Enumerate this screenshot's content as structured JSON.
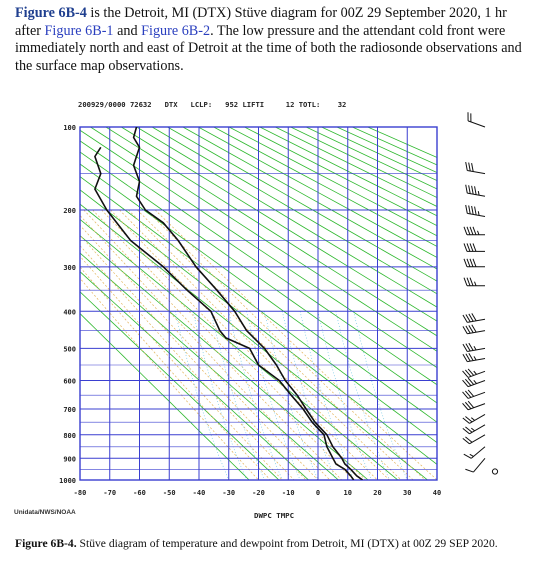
{
  "intro": {
    "fig_label": "Figure 6B-4",
    "text1": " is the Detroit, MI (DTX) Stüve diagram for 00Z 29 September 2020, 1 hr after ",
    "link1": "Figure 6B-1",
    "text2": " and ",
    "link2": "Figure 6B-2",
    "text3": ". The low pressure and the attendant cold front were immediately north and east of Detroit at the time of both the radiosonde observations and the surface map observations."
  },
  "diagram": {
    "header": {
      "datetime": "200929/0000",
      "station_id": "72632",
      "station": "DTX",
      "lclp_label": "LCLP:",
      "lclp_value": "952",
      "lift_label": "LIFTI",
      "lift_value": "12",
      "totl_label": "TOTL:",
      "totl_value": "32"
    },
    "pressure_ticks": [
      "100",
      "200",
      "300",
      "400",
      "500",
      "600",
      "700",
      "800",
      "900",
      "1000"
    ],
    "temp_ticks": [
      "-80",
      "-70",
      "-60",
      "-50",
      "-40",
      "-30",
      "-20",
      "-10",
      "0",
      "10",
      "20",
      "30",
      "40"
    ],
    "x_axis_title": "DWPC TMPC",
    "credit": "Unidata/NWS/NOAA",
    "colors": {
      "grid": "#3a3fd0",
      "dry_adiabat": "#2fb82f",
      "moist_adiabat": "#e3b45c",
      "mixing_ratio": "#5fc0e0",
      "profile": "#111111"
    },
    "temperature_profile": [
      {
        "p": 1000,
        "t": 15
      },
      {
        "p": 980,
        "t": 13
      },
      {
        "p": 950,
        "t": 11
      },
      {
        "p": 925,
        "t": 9
      },
      {
        "p": 900,
        "t": 8
      },
      {
        "p": 850,
        "t": 5
      },
      {
        "p": 800,
        "t": 3
      },
      {
        "p": 750,
        "t": -1
      },
      {
        "p": 700,
        "t": -4
      },
      {
        "p": 650,
        "t": -7
      },
      {
        "p": 600,
        "t": -11
      },
      {
        "p": 550,
        "t": -14
      },
      {
        "p": 500,
        "t": -18
      },
      {
        "p": 450,
        "t": -24
      },
      {
        "p": 400,
        "t": -28
      },
      {
        "p": 350,
        "t": -34
      },
      {
        "p": 300,
        "t": -41
      },
      {
        "p": 250,
        "t": -47
      },
      {
        "p": 220,
        "t": -52
      },
      {
        "p": 200,
        "t": -58
      },
      {
        "p": 180,
        "t": -61
      },
      {
        "p": 160,
        "t": -60
      },
      {
        "p": 140,
        "t": -62
      },
      {
        "p": 120,
        "t": -60
      },
      {
        "p": 110,
        "t": -62
      },
      {
        "p": 100,
        "t": -61
      }
    ],
    "dewpoint_profile": [
      {
        "p": 1000,
        "t": 12
      },
      {
        "p": 980,
        "t": 11
      },
      {
        "p": 950,
        "t": 9
      },
      {
        "p": 925,
        "t": 6
      },
      {
        "p": 900,
        "t": 5
      },
      {
        "p": 850,
        "t": 3
      },
      {
        "p": 800,
        "t": 2
      },
      {
        "p": 750,
        "t": -2
      },
      {
        "p": 700,
        "t": -5
      },
      {
        "p": 650,
        "t": -9
      },
      {
        "p": 600,
        "t": -13
      },
      {
        "p": 550,
        "t": -20
      },
      {
        "p": 500,
        "t": -23
      },
      {
        "p": 470,
        "t": -31
      },
      {
        "p": 450,
        "t": -33
      },
      {
        "p": 400,
        "t": -36
      },
      {
        "p": 350,
        "t": -44
      },
      {
        "p": 300,
        "t": -52
      },
      {
        "p": 250,
        "t": -63
      },
      {
        "p": 200,
        "t": -71
      },
      {
        "p": 170,
        "t": -75
      },
      {
        "p": 150,
        "t": -73
      },
      {
        "p": 130,
        "t": -75
      },
      {
        "p": 120,
        "t": -73
      }
    ],
    "wind_barbs": [
      {
        "p": 100,
        "dir": 290,
        "spd": 20
      },
      {
        "p": 150,
        "dir": 280,
        "spd": 30
      },
      {
        "p": 180,
        "dir": 280,
        "spd": 45
      },
      {
        "p": 210,
        "dir": 280,
        "spd": 45
      },
      {
        "p": 240,
        "dir": 270,
        "spd": 45
      },
      {
        "p": 270,
        "dir": 270,
        "spd": 40
      },
      {
        "p": 300,
        "dir": 270,
        "spd": 40
      },
      {
        "p": 340,
        "dir": 270,
        "spd": 35
      },
      {
        "p": 420,
        "dir": 260,
        "spd": 40
      },
      {
        "p": 450,
        "dir": 260,
        "spd": 40
      },
      {
        "p": 500,
        "dir": 260,
        "spd": 35
      },
      {
        "p": 530,
        "dir": 260,
        "spd": 35
      },
      {
        "p": 570,
        "dir": 250,
        "spd": 35
      },
      {
        "p": 600,
        "dir": 250,
        "spd": 35
      },
      {
        "p": 640,
        "dir": 250,
        "spd": 30
      },
      {
        "p": 680,
        "dir": 250,
        "spd": 30
      },
      {
        "p": 720,
        "dir": 240,
        "spd": 25
      },
      {
        "p": 760,
        "dir": 240,
        "spd": 25
      },
      {
        "p": 800,
        "dir": 240,
        "spd": 20
      },
      {
        "p": 850,
        "dir": 230,
        "spd": 15
      },
      {
        "p": 900,
        "dir": 220,
        "spd": 10
      }
    ],
    "calm_marker_p": 960
  },
  "caption": {
    "label": "Figure 6B-4.",
    "text": " Stüve diagram of temperature and dewpoint from Detroit, MI (DTX) at 00Z 29 SEP 2020."
  }
}
